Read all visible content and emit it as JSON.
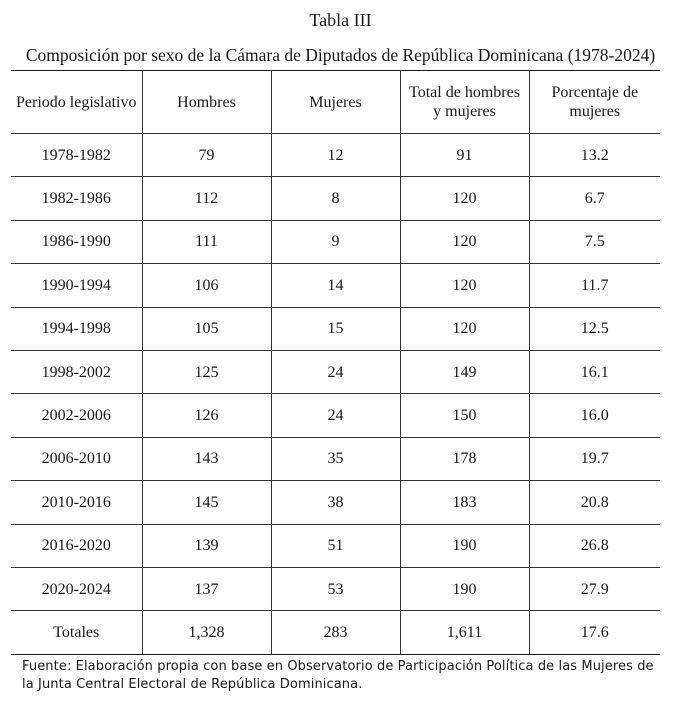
{
  "title": "Tabla III",
  "subtitle": "Composición por sexo de la Cámara de Diputados de República Dominicana (1978-2024)",
  "headers": [
    "Periodo legislativo",
    "Hombres",
    "Mujeres",
    "Total de hombres y mujeres",
    "Porcentaje de mujeres"
  ],
  "rows": [
    [
      "1978-1982",
      "79",
      "12",
      "91",
      "13.2"
    ],
    [
      "1982-1986",
      "112",
      "8",
      "120",
      "6.7"
    ],
    [
      "1986-1990",
      "111",
      "9",
      "120",
      "7.5"
    ],
    [
      "1990-1994",
      "106",
      "14",
      "120",
      "11.7"
    ],
    [
      "1994-1998",
      "105",
      "15",
      "120",
      "12.5"
    ],
    [
      "1998-2002",
      "125",
      "24",
      "149",
      "16.1"
    ],
    [
      "2002-2006",
      "126",
      "24",
      "150",
      "16.0"
    ],
    [
      "2006-2010",
      "143",
      "35",
      "178",
      "19.7"
    ],
    [
      "2010-2016",
      "145",
      "38",
      "183",
      "20.8"
    ],
    [
      "2016-2020",
      "139",
      "51",
      "190",
      "26.8"
    ],
    [
      "2020-2024",
      "137",
      "53",
      "190",
      "27.9"
    ],
    [
      "Totales",
      "1,328",
      "283",
      "1,611",
      "17.6"
    ]
  ],
  "source": "Fuente: Elaboración propia con base en Observatorio de Participación Política de las Mujeres de la Junta Central Electoral de República Dominicana."
}
